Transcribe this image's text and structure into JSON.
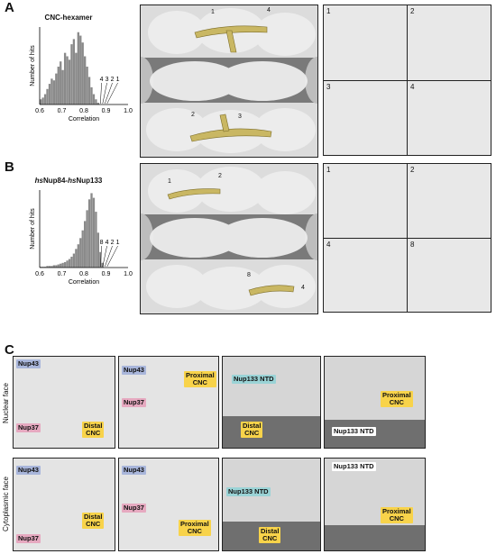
{
  "panels": {
    "a_letter": "A",
    "b_letter": "B",
    "c_letter": "C"
  },
  "colors": {
    "protein": "#c9b763",
    "protein_dark": "#7d6e2a",
    "nup43": "#a9b6db",
    "nup37": "#e6a9c0",
    "cnc_label": "#f8d34a",
    "ntd_label": "#9ad3d6",
    "membrane": "#6f6f6f"
  },
  "chart_data": [
    {
      "type": "bar",
      "title": "CNC-hexamer",
      "xlabel": "Correlation",
      "ylabel": "Number of hits",
      "xlim": [
        0.6,
        1.0
      ],
      "xticks": [
        "0.6",
        "0.7",
        "0.8",
        "0.9",
        "1.0"
      ],
      "x": [
        0.6,
        0.61,
        0.62,
        0.63,
        0.64,
        0.65,
        0.66,
        0.67,
        0.68,
        0.69,
        0.7,
        0.71,
        0.72,
        0.73,
        0.74,
        0.75,
        0.76,
        0.77,
        0.78,
        0.79,
        0.8,
        0.81,
        0.82,
        0.83,
        0.84,
        0.85,
        0.86
      ],
      "values": [
        3,
        4,
        6,
        9,
        12,
        15,
        14,
        18,
        22,
        25,
        20,
        30,
        28,
        26,
        35,
        38,
        30,
        42,
        40,
        36,
        28,
        22,
        16,
        10,
        6,
        3,
        1
      ],
      "ylim": [
        0,
        45
      ],
      "annotations": [
        "4",
        "3",
        "2",
        "1"
      ]
    },
    {
      "type": "bar",
      "title": "hsNup84-hsNup133",
      "title_italic_prefix": "hs",
      "title_mid": "Nup84-",
      "title_italic_prefix2": "hs",
      "title_end": "Nup133",
      "xlabel": "Correlation",
      "ylabel": "Number of hits",
      "xlim": [
        0.6,
        1.0
      ],
      "xticks": [
        "0.6",
        "0.7",
        "0.8",
        "0.9",
        "1.0"
      ],
      "x": [
        0.6,
        0.61,
        0.62,
        0.63,
        0.64,
        0.65,
        0.66,
        0.67,
        0.68,
        0.69,
        0.7,
        0.71,
        0.72,
        0.73,
        0.74,
        0.75,
        0.76,
        0.77,
        0.78,
        0.79,
        0.8,
        0.81,
        0.82,
        0.83,
        0.84,
        0.85,
        0.86,
        0.87,
        0.88
      ],
      "values": [
        1,
        1,
        1,
        2,
        2,
        2,
        3,
        3,
        4,
        5,
        6,
        7,
        9,
        11,
        14,
        18,
        24,
        30,
        38,
        48,
        60,
        74,
        88,
        96,
        90,
        72,
        45,
        20,
        6
      ],
      "ylim": [
        0,
        100
      ],
      "annotations": [
        "8",
        "4",
        "2",
        "1"
      ]
    }
  ],
  "panel_a": {
    "map_labels": [
      "1",
      "4",
      "2",
      "3"
    ],
    "tiles": [
      "1",
      "2",
      "3",
      "4"
    ]
  },
  "panel_b": {
    "map_labels": [
      "1",
      "2",
      "8",
      "4"
    ],
    "tiles": [
      "1",
      "2",
      "4",
      "8"
    ]
  },
  "panel_c": {
    "row_labels": [
      "Nuclear face",
      "Cytoplasmic face"
    ],
    "nup43": "Nup43",
    "nup37": "Nup37",
    "distal_cnc": "Distal\nCNC",
    "proximal_cnc": "Proximal\nCNC",
    "nup133_ntd": "Nup133 NTD"
  }
}
